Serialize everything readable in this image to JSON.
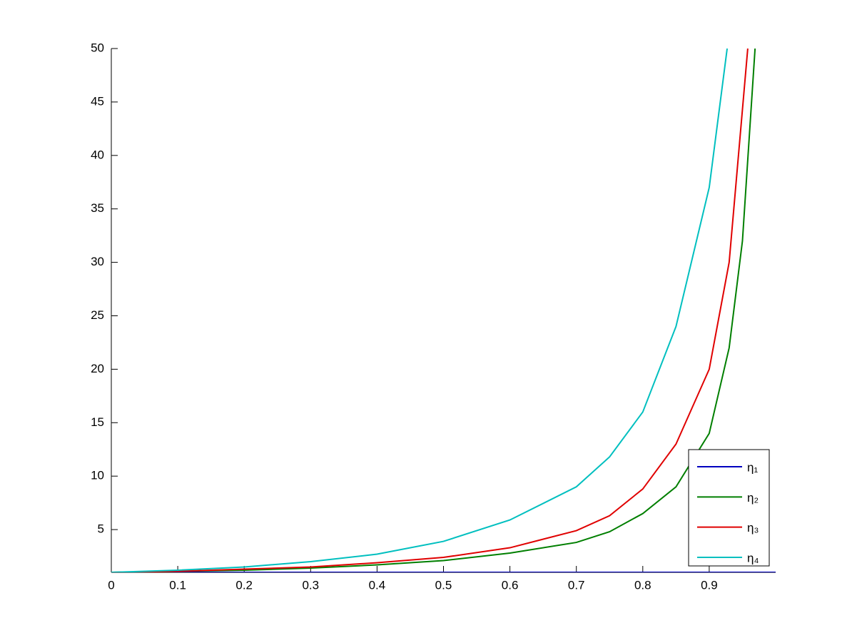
{
  "chart_data": {
    "type": "line",
    "xlim": [
      0,
      1
    ],
    "xticks": [
      0,
      0.1,
      0.2,
      0.3,
      0.4,
      0.5,
      0.6,
      0.7,
      0.8,
      0.9
    ],
    "ylim": [
      1,
      50
    ],
    "yticks": [
      5,
      10,
      15,
      20,
      25,
      30,
      35,
      40,
      45,
      50
    ],
    "legend": "lower right",
    "series": [
      {
        "name": "η₁",
        "color": "#0000bf",
        "x": [
          0,
          1
        ],
        "values": [
          1,
          1
        ]
      },
      {
        "name": "η₂",
        "color": "#007f00",
        "x": [
          0,
          0.1,
          0.2,
          0.3,
          0.4,
          0.5,
          0.6,
          0.7,
          0.75,
          0.8,
          0.85,
          0.9,
          0.93,
          0.95,
          0.969
        ],
        "values": [
          1,
          1.1,
          1.2,
          1.4,
          1.7,
          2.1,
          2.8,
          3.8,
          4.8,
          6.5,
          9,
          14,
          22,
          32,
          50
        ]
      },
      {
        "name": "η₃",
        "color": "#e00000",
        "x": [
          0,
          0.1,
          0.2,
          0.3,
          0.4,
          0.5,
          0.6,
          0.7,
          0.75,
          0.8,
          0.85,
          0.9,
          0.93,
          0.958
        ],
        "values": [
          1,
          1.1,
          1.3,
          1.5,
          1.9,
          2.4,
          3.3,
          4.9,
          6.3,
          8.8,
          13,
          20,
          30,
          50
        ]
      },
      {
        "name": "η₄",
        "color": "#00bfbf",
        "x": [
          0,
          0.1,
          0.2,
          0.3,
          0.4,
          0.5,
          0.6,
          0.7,
          0.75,
          0.8,
          0.85,
          0.9,
          0.927
        ],
        "values": [
          1,
          1.2,
          1.5,
          2.0,
          2.7,
          3.9,
          5.9,
          9.0,
          11.8,
          16,
          24,
          37,
          50
        ]
      }
    ]
  }
}
